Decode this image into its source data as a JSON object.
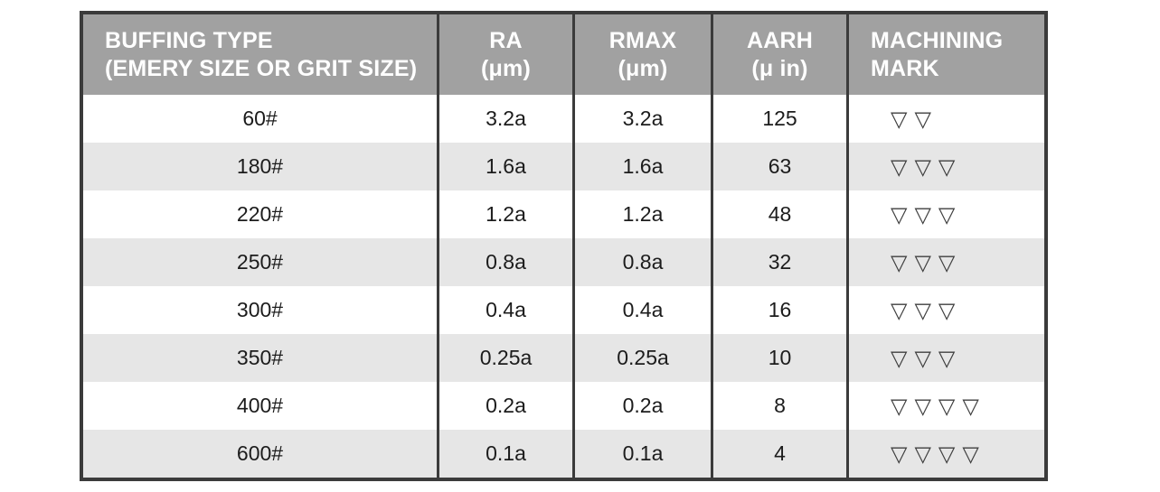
{
  "colors": {
    "header_bg": "#a1a1a1",
    "header_text": "#ffffff",
    "row_bg": "#ffffff",
    "row_alt_bg": "#e6e6e6",
    "border": "#3b3b3b",
    "body_text": "#1c1c1c",
    "mark_color": "#3f3f3f"
  },
  "table": {
    "mark_glyph": "▽",
    "columns": [
      {
        "id": "buffing_type",
        "line1": "BUFFING TYPE",
        "line2": "(EMERY SIZE OR GRIT SIZE)"
      },
      {
        "id": "ra",
        "line1": "RA",
        "line2": "(μm)"
      },
      {
        "id": "rmax",
        "line1": "RMAX",
        "line2": "(μm)"
      },
      {
        "id": "aarh",
        "line1": "AARH",
        "line2": "(μ in)"
      },
      {
        "id": "machining_mark",
        "line1": "MACHINING",
        "line2": "MARK"
      }
    ],
    "rows": [
      {
        "buffing": "60#",
        "ra": "3.2a",
        "rmax": "3.2a",
        "aarh": "125",
        "marks": 2
      },
      {
        "buffing": "180#",
        "ra": "1.6a",
        "rmax": "1.6a",
        "aarh": "63",
        "marks": 3
      },
      {
        "buffing": "220#",
        "ra": "1.2a",
        "rmax": "1.2a",
        "aarh": "48",
        "marks": 3
      },
      {
        "buffing": "250#",
        "ra": "0.8a",
        "rmax": "0.8a",
        "aarh": "32",
        "marks": 3
      },
      {
        "buffing": "300#",
        "ra": "0.4a",
        "rmax": "0.4a",
        "aarh": "16",
        "marks": 3
      },
      {
        "buffing": "350#",
        "ra": "0.25a",
        "rmax": "0.25a",
        "aarh": "10",
        "marks": 3
      },
      {
        "buffing": "400#",
        "ra": "0.2a",
        "rmax": "0.2a",
        "aarh": "8",
        "marks": 4
      },
      {
        "buffing": "600#",
        "ra": "0.1a",
        "rmax": "0.1a",
        "aarh": "4",
        "marks": 4
      }
    ]
  },
  "chart_data": {
    "type": "table",
    "title": "",
    "columns": [
      "BUFFING TYPE (EMERY SIZE OR GRIT SIZE)",
      "RA (μm)",
      "RMAX (μm)",
      "AARH (μ in)",
      "MACHINING MARK"
    ],
    "rows": [
      [
        "60#",
        "3.2a",
        "3.2a",
        "125",
        "▽▽"
      ],
      [
        "180#",
        "1.6a",
        "1.6a",
        "63",
        "▽▽▽"
      ],
      [
        "220#",
        "1.2a",
        "1.2a",
        "48",
        "▽▽▽"
      ],
      [
        "250#",
        "0.8a",
        "0.8a",
        "32",
        "▽▽▽"
      ],
      [
        "300#",
        "0.4a",
        "0.4a",
        "16",
        "▽▽▽"
      ],
      [
        "350#",
        "0.25a",
        "0.25a",
        "10",
        "▽▽▽"
      ],
      [
        "400#",
        "0.2a",
        "0.2a",
        "8",
        "▽▽▽▽"
      ],
      [
        "600#",
        "0.1a",
        "0.1a",
        "4",
        "▽▽▽▽"
      ]
    ]
  }
}
